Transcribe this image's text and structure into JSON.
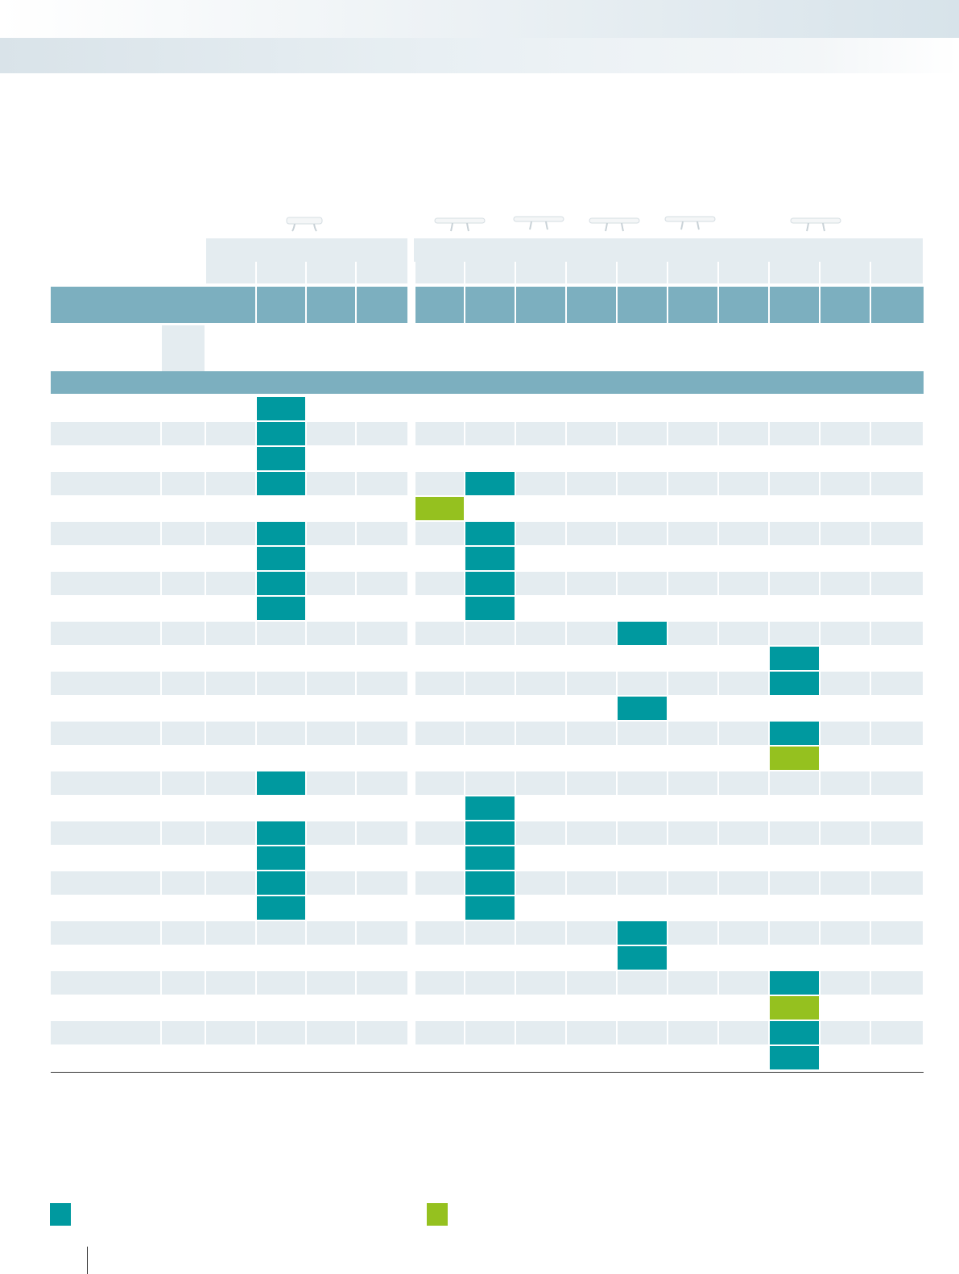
{
  "colors": {
    "mark_primary": "#00999f",
    "mark_secondary": "#95c11f",
    "header_bar": "#7cafbf",
    "row_stripe": "#e4ecf0"
  },
  "header": {
    "product_icons": [
      "product-1-icon",
      "product-2-icon",
      "product-3-icon",
      "product-4-icon",
      "product-5-icon",
      "product-6-icon"
    ]
  },
  "table": {
    "rows": [
      {
        "marks": [
          {
            "col": 2,
            "kind": "primary"
          }
        ]
      },
      {
        "marks": [
          {
            "col": 2,
            "kind": "primary"
          }
        ]
      },
      {
        "marks": [
          {
            "col": 2,
            "kind": "primary"
          }
        ]
      },
      {
        "marks": [
          {
            "col": 2,
            "kind": "primary"
          },
          {
            "col": 6,
            "kind": "primary"
          }
        ]
      },
      {
        "marks": [
          {
            "col": 5,
            "kind": "secondary"
          }
        ]
      },
      {
        "marks": [
          {
            "col": 2,
            "kind": "primary"
          },
          {
            "col": 6,
            "kind": "primary"
          }
        ]
      },
      {
        "marks": [
          {
            "col": 2,
            "kind": "primary"
          },
          {
            "col": 6,
            "kind": "primary"
          }
        ]
      },
      {
        "marks": [
          {
            "col": 2,
            "kind": "primary"
          },
          {
            "col": 6,
            "kind": "primary"
          }
        ]
      },
      {
        "marks": [
          {
            "col": 2,
            "kind": "primary"
          },
          {
            "col": 6,
            "kind": "primary"
          }
        ]
      },
      {
        "marks": [
          {
            "col": 9,
            "kind": "primary"
          }
        ]
      },
      {
        "marks": [
          {
            "col": 12,
            "kind": "primary"
          }
        ]
      },
      {
        "marks": [
          {
            "col": 12,
            "kind": "primary"
          }
        ]
      },
      {
        "marks": [
          {
            "col": 9,
            "kind": "primary"
          }
        ]
      },
      {
        "marks": [
          {
            "col": 12,
            "kind": "primary"
          }
        ]
      },
      {
        "marks": [
          {
            "col": 12,
            "kind": "secondary"
          }
        ]
      },
      {
        "marks": [
          {
            "col": 2,
            "kind": "primary"
          }
        ]
      },
      {
        "marks": [
          {
            "col": 6,
            "kind": "primary"
          }
        ]
      },
      {
        "marks": [
          {
            "col": 2,
            "kind": "primary"
          },
          {
            "col": 6,
            "kind": "primary"
          }
        ]
      },
      {
        "marks": [
          {
            "col": 2,
            "kind": "primary"
          },
          {
            "col": 6,
            "kind": "primary"
          }
        ]
      },
      {
        "marks": [
          {
            "col": 2,
            "kind": "primary"
          },
          {
            "col": 6,
            "kind": "primary"
          }
        ]
      },
      {
        "marks": [
          {
            "col": 2,
            "kind": "primary"
          },
          {
            "col": 6,
            "kind": "primary"
          }
        ]
      },
      {
        "marks": [
          {
            "col": 9,
            "kind": "primary"
          }
        ]
      },
      {
        "marks": [
          {
            "col": 9,
            "kind": "primary"
          }
        ]
      },
      {
        "marks": [
          {
            "col": 12,
            "kind": "primary"
          }
        ]
      },
      {
        "marks": [
          {
            "col": 12,
            "kind": "secondary"
          }
        ]
      },
      {
        "marks": [
          {
            "col": 12,
            "kind": "primary"
          }
        ]
      },
      {
        "marks": [
          {
            "col": 12,
            "kind": "primary"
          }
        ]
      }
    ]
  },
  "legend": {
    "items": [
      {
        "kind": "primary",
        "icon": "teal-swatch-icon"
      },
      {
        "kind": "secondary",
        "icon": "green-swatch-icon"
      }
    ]
  }
}
